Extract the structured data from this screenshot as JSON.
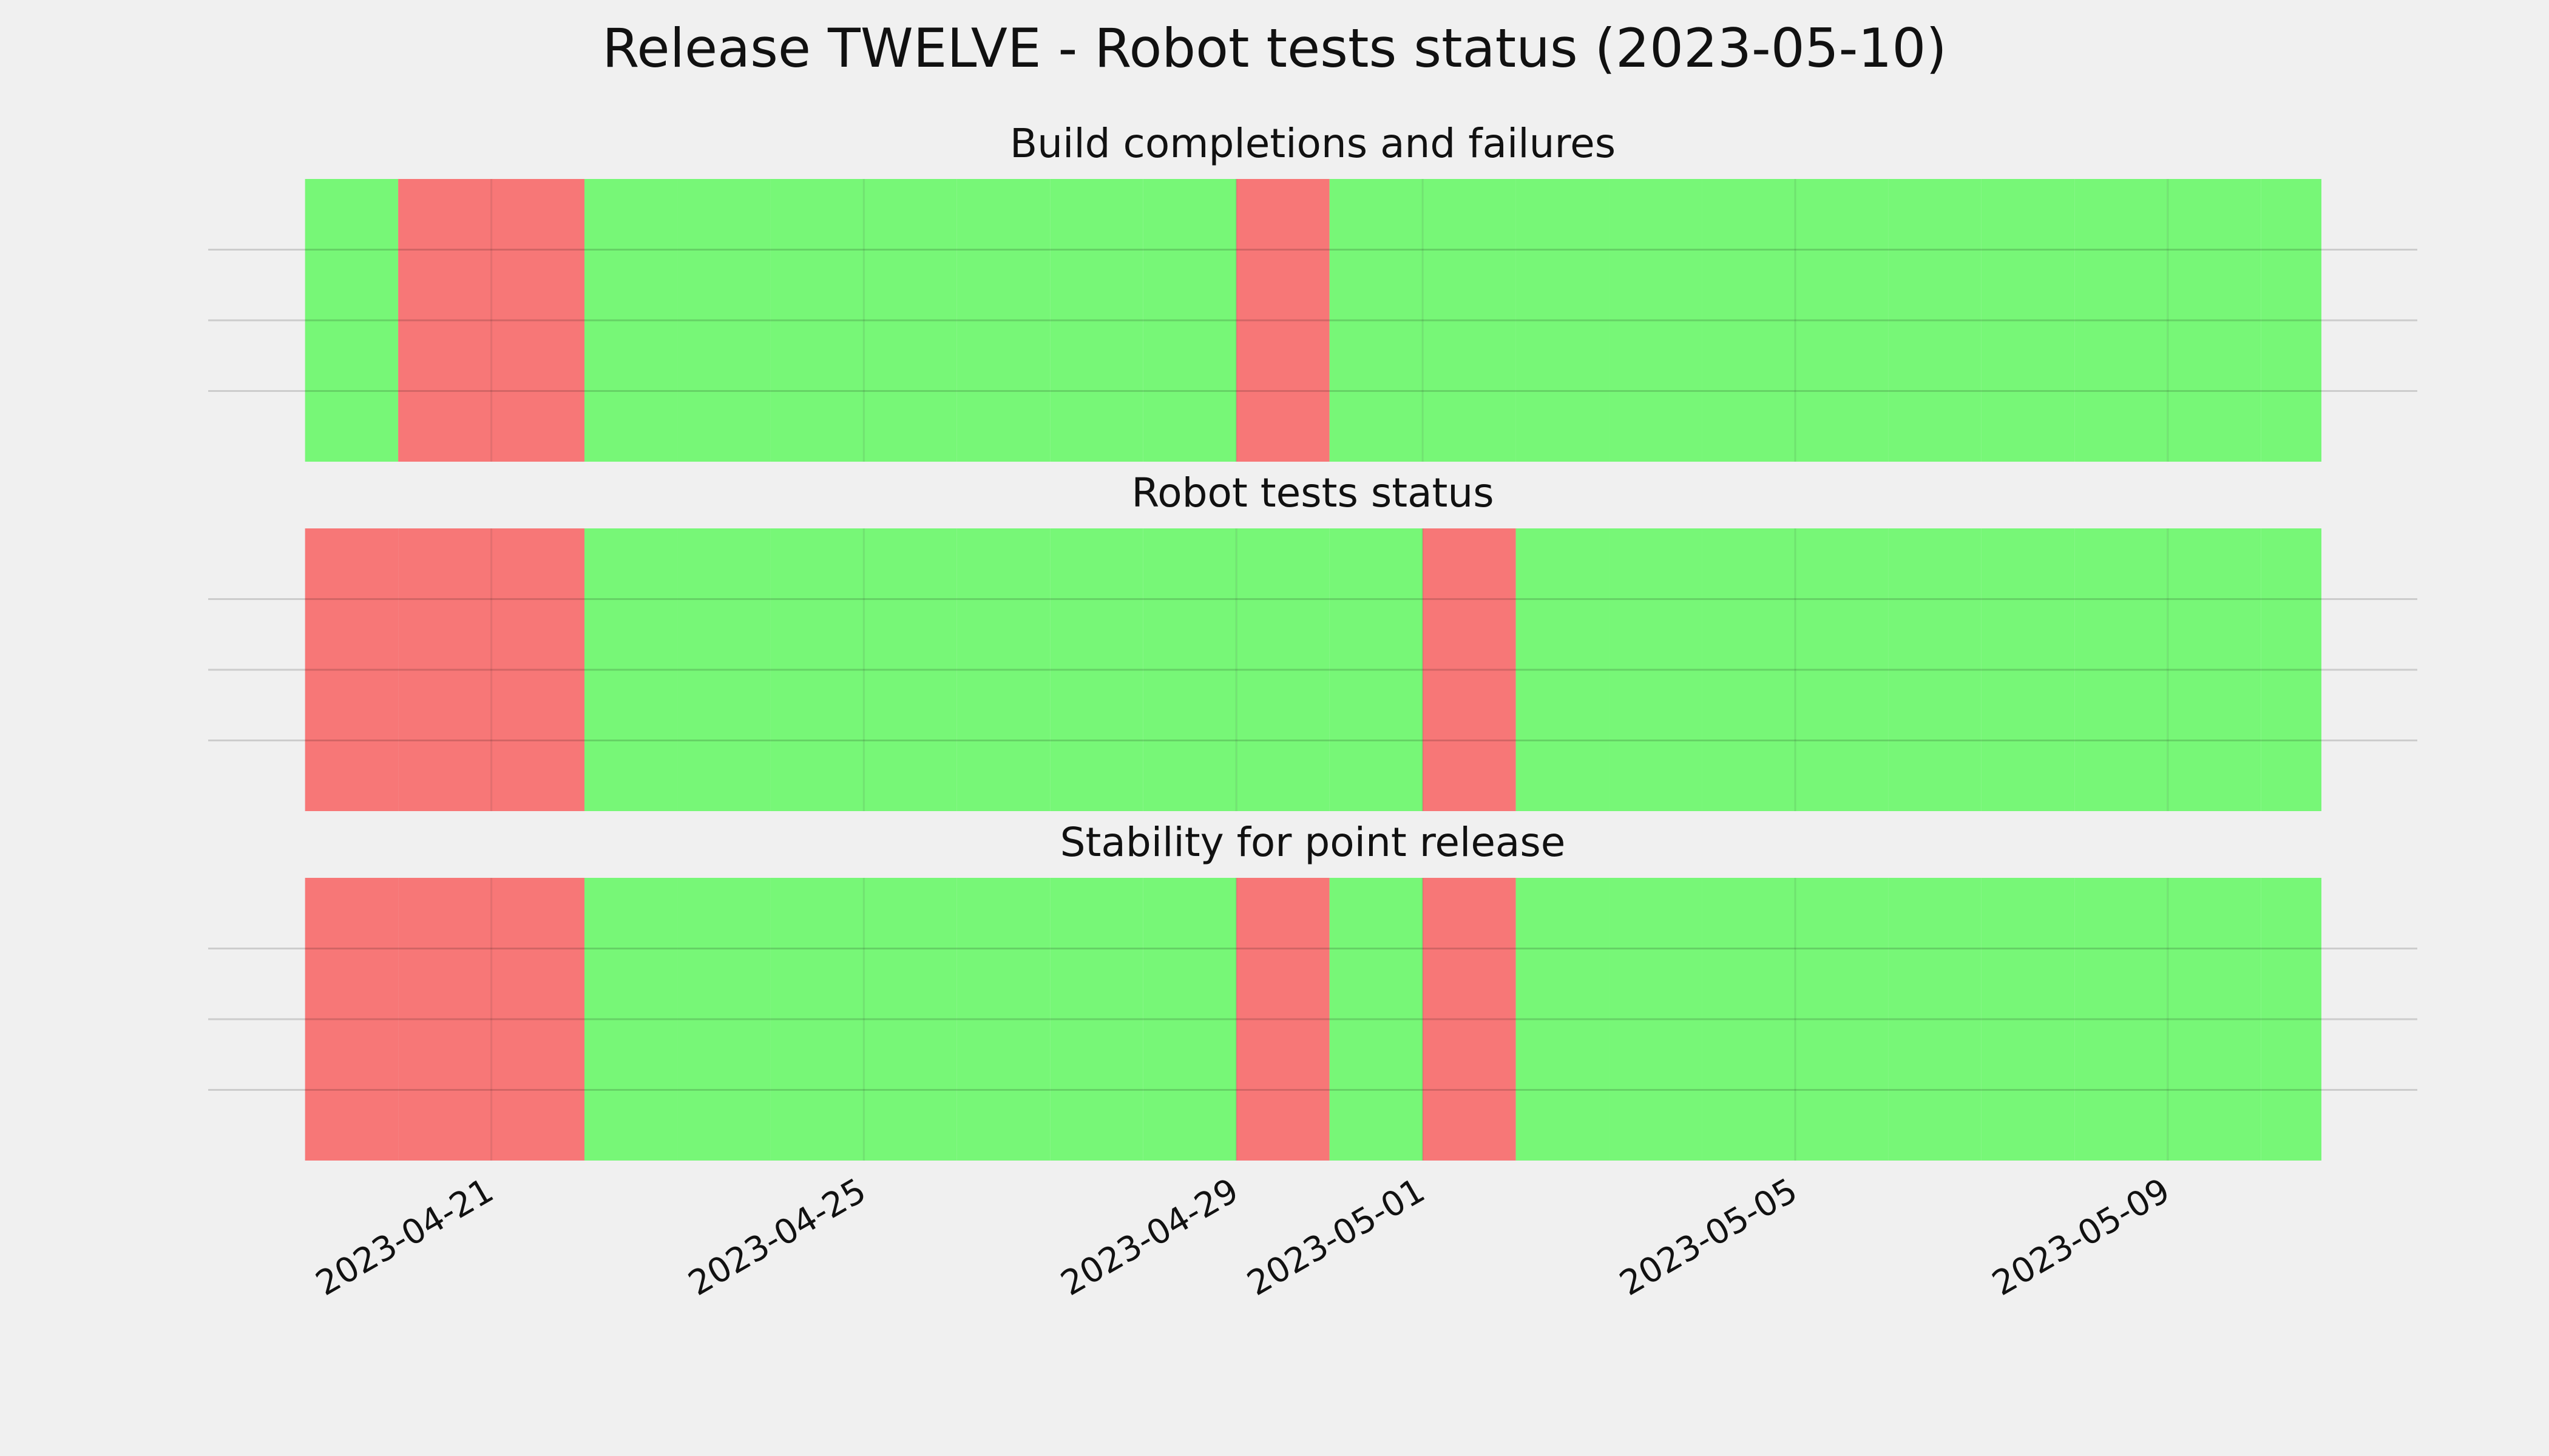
{
  "chart_data": {
    "type": "status-timeline",
    "title": "Release TWELVE - Robot tests status (2023-05-10)",
    "bins": [
      "2023-04-19",
      "2023-04-20",
      "2023-04-21",
      "2023-04-22",
      "2023-04-23",
      "2023-04-24",
      "2023-04-25",
      "2023-04-26",
      "2023-04-27",
      "2023-04-28",
      "2023-04-29",
      "2023-04-30",
      "2023-05-01",
      "2023-05-02",
      "2023-05-03",
      "2023-05-04",
      "2023-05-05",
      "2023-05-06",
      "2023-05-07",
      "2023-05-08",
      "2023-05-09",
      "2023-05-10",
      "2023-05-10T15:36"
    ],
    "xlim": [
      "2023-04-17T23:02",
      "2023-05-11T16:19"
    ],
    "xticks": [
      "2023-04-21",
      "2023-04-25",
      "2023-04-29",
      "2023-05-01",
      "2023-05-05",
      "2023-05-09"
    ],
    "ylim": [
      0,
      1
    ],
    "yticks": [
      0.25,
      0.5,
      0.75
    ],
    "grid": true,
    "status_colors": [
      "#f77777",
      "#77f777"
    ],
    "panels": [
      {
        "title": "Build completions and failures",
        "values": [
          1,
          0,
          0,
          1,
          1,
          1,
          1,
          1,
          1,
          1,
          0,
          1,
          1,
          1,
          1,
          1,
          1,
          1,
          1,
          1,
          1,
          1
        ]
      },
      {
        "title": "Robot tests status",
        "values": [
          0,
          0,
          0,
          1,
          1,
          1,
          1,
          1,
          1,
          1,
          1,
          1,
          0,
          1,
          1,
          1,
          1,
          1,
          1,
          1,
          1,
          1
        ]
      },
      {
        "title": "Stability for point release",
        "values": [
          0,
          0,
          0,
          1,
          1,
          1,
          1,
          1,
          1,
          1,
          0,
          1,
          0,
          1,
          1,
          1,
          1,
          1,
          1,
          1,
          1,
          1
        ]
      }
    ]
  }
}
